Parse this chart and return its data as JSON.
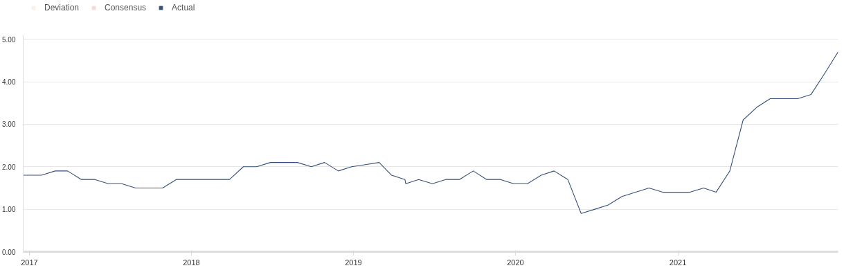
{
  "chart_data": {
    "type": "line",
    "x": [
      "2016-12-18",
      "2017-01-28",
      "2017-02-28",
      "2017-03-28",
      "2017-04-28",
      "2017-05-28",
      "2017-06-28",
      "2017-07-28",
      "2017-08-28",
      "2017-09-28",
      "2017-10-28",
      "2017-11-28",
      "2017-12-28",
      "2018-01-28",
      "2018-02-28",
      "2018-03-28",
      "2018-04-28",
      "2018-05-28",
      "2018-06-28",
      "2018-07-28",
      "2018-08-28",
      "2018-09-28",
      "2018-10-28",
      "2018-11-28",
      "2018-12-28",
      "2019-01-28",
      "2019-02-28",
      "2019-03-28",
      "2019-04-27",
      "2019-04-29",
      "2019-05-28",
      "2019-06-28",
      "2019-07-28",
      "2019-08-28",
      "2019-09-28",
      "2019-10-28",
      "2019-11-28",
      "2019-12-28",
      "2020-01-28",
      "2020-02-28",
      "2020-03-28",
      "2020-04-28",
      "2020-05-28",
      "2020-06-28",
      "2020-07-28",
      "2020-08-28",
      "2020-09-28",
      "2020-10-28",
      "2020-11-28",
      "2020-12-28",
      "2021-01-28",
      "2021-02-28",
      "2021-03-28",
      "2021-04-28",
      "2021-05-28",
      "2021-06-28",
      "2021-07-28",
      "2021-08-28",
      "2021-09-28",
      "2021-10-28",
      "2021-11-28",
      "2021-12-28"
    ],
    "series": [
      {
        "name": "Deviation",
        "color": "#fdf0e6",
        "values": [
          null,
          null,
          null,
          null,
          null,
          null,
          null,
          null,
          null,
          null,
          null,
          null,
          null,
          null,
          null,
          null,
          null,
          null,
          null,
          null,
          null,
          null,
          null,
          null,
          null,
          null,
          null,
          null,
          null,
          null,
          null,
          null,
          null,
          null,
          null,
          null,
          null,
          null,
          null,
          null,
          null,
          null,
          null,
          null,
          null,
          null,
          null,
          null,
          null,
          null,
          null,
          null,
          null,
          null,
          null,
          null,
          null,
          null,
          null,
          null,
          null,
          null
        ]
      },
      {
        "name": "Consensus",
        "color": "#f7d9d9",
        "values": [
          null,
          null,
          null,
          null,
          null,
          null,
          null,
          null,
          null,
          null,
          null,
          null,
          null,
          null,
          null,
          null,
          null,
          null,
          null,
          null,
          null,
          null,
          null,
          null,
          null,
          null,
          null,
          null,
          null,
          null,
          null,
          null,
          null,
          null,
          null,
          null,
          null,
          null,
          null,
          null,
          null,
          null,
          null,
          null,
          null,
          null,
          null,
          null,
          null,
          null,
          null,
          null,
          null,
          null,
          null,
          null,
          null,
          null,
          null,
          null,
          null,
          null
        ]
      },
      {
        "name": "Actual",
        "color": "#34507a",
        "values": [
          1.8,
          1.8,
          1.9,
          1.9,
          1.7,
          1.7,
          1.6,
          1.6,
          1.5,
          1.5,
          1.5,
          1.7,
          1.7,
          1.7,
          1.7,
          1.7,
          2.0,
          2.0,
          2.1,
          2.1,
          2.1,
          2.0,
          2.1,
          1.9,
          2.0,
          2.05,
          2.1,
          1.8,
          1.7,
          1.6,
          1.7,
          1.6,
          1.7,
          1.7,
          1.9,
          1.7,
          1.7,
          1.6,
          1.6,
          1.8,
          1.9,
          1.7,
          0.9,
          1.0,
          1.1,
          1.3,
          1.4,
          1.5,
          1.4,
          1.4,
          1.4,
          1.5,
          1.4,
          1.9,
          3.1,
          3.4,
          3.6,
          3.6,
          3.6,
          3.7,
          4.2,
          4.7
        ]
      }
    ],
    "xlim": [
      "2016-12-18",
      "2021-12-28"
    ],
    "xticks": [
      {
        "value": "2017-01-01",
        "label": "2017"
      },
      {
        "value": "2018-01-01",
        "label": "2018"
      },
      {
        "value": "2019-01-01",
        "label": "2019"
      },
      {
        "value": "2020-01-01",
        "label": "2020"
      },
      {
        "value": "2021-01-01",
        "label": "2021"
      }
    ],
    "ylim": [
      0,
      5.1
    ],
    "yticks": [
      {
        "value": 0,
        "label": "0.00"
      },
      {
        "value": 1,
        "label": "1.00"
      },
      {
        "value": 2,
        "label": "2.00"
      },
      {
        "value": 3,
        "label": "3.00"
      },
      {
        "value": 4,
        "label": "4.00"
      },
      {
        "value": 5,
        "label": "5.00"
      }
    ],
    "grid": "y",
    "legend": "top left",
    "marker": "none",
    "line_style": "solid"
  }
}
